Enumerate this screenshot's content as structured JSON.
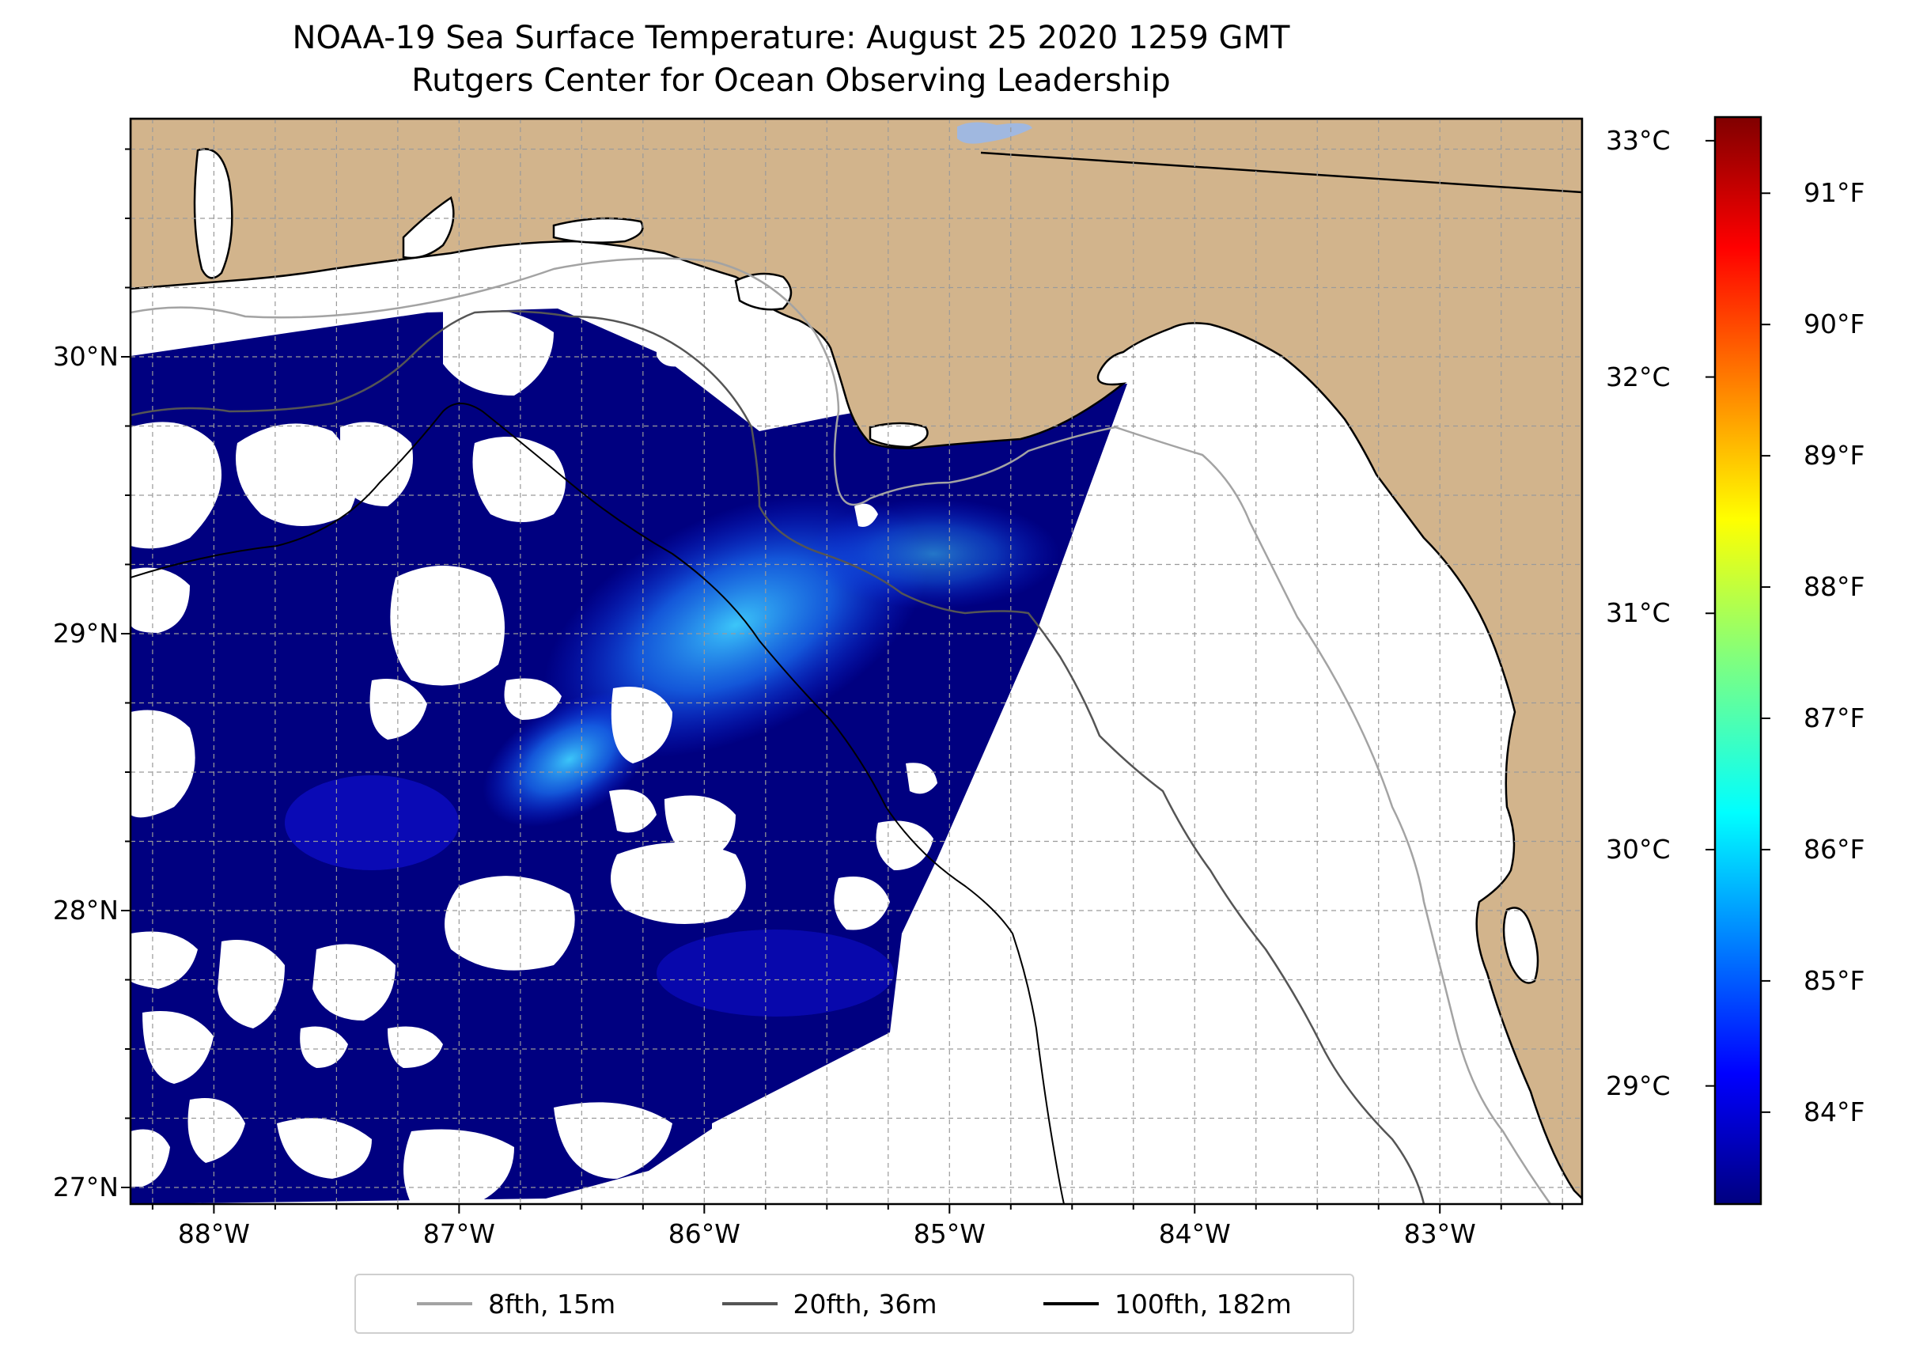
{
  "title": {
    "line1": "NOAA-19 Sea Surface Temperature: August 25 2020 1259 GMT",
    "line2": "Rutgers Center for Ocean Observing Leadership"
  },
  "map": {
    "extent": {
      "lon_min": -88.34,
      "lon_max": -82.42,
      "lat_min": 26.94,
      "lat_max": 30.86
    },
    "lat_ticks": [
      {
        "value": 30,
        "label": "30°N"
      },
      {
        "value": 29,
        "label": "29°N"
      },
      {
        "value": 28,
        "label": "28°N"
      },
      {
        "value": 27,
        "label": "27°N"
      }
    ],
    "lon_ticks": [
      {
        "value": -88,
        "label": "88°W"
      },
      {
        "value": -87,
        "label": "87°W"
      },
      {
        "value": -86,
        "label": "86°W"
      },
      {
        "value": -85,
        "label": "85°W"
      },
      {
        "value": -84,
        "label": "84°W"
      },
      {
        "value": -83,
        "label": "83°W"
      }
    ],
    "colors": {
      "land": "#d2b48c",
      "no_data": "#ffffff",
      "cold_water": "#000080",
      "grid": "#9a9a9a",
      "isobath_8": "#a3a3a3",
      "isobath_20": "#555555",
      "isobath_100": "#000000"
    }
  },
  "colorbar": {
    "colormap": "jet",
    "celsius_ticks": [
      {
        "value": 33,
        "label": "33°C"
      },
      {
        "value": 32,
        "label": "32°C"
      },
      {
        "value": 31,
        "label": "31°C"
      },
      {
        "value": 30,
        "label": "30°C"
      },
      {
        "value": 29,
        "label": "29°C"
      }
    ],
    "fahrenheit_ticks": [
      {
        "value": 91,
        "label": "91°F"
      },
      {
        "value": 90,
        "label": "90°F"
      },
      {
        "value": 89,
        "label": "89°F"
      },
      {
        "value": 88,
        "label": "88°F"
      },
      {
        "value": 87,
        "label": "87°F"
      },
      {
        "value": 86,
        "label": "86°F"
      },
      {
        "value": 85,
        "label": "85°F"
      },
      {
        "value": 84,
        "label": "84°F"
      }
    ],
    "range_c": [
      28.5,
      33.1
    ]
  },
  "legend": {
    "items": [
      {
        "label": "8fth, 15m",
        "color": "#a3a3a3"
      },
      {
        "label": "20fth, 36m",
        "color": "#555555"
      },
      {
        "label": "100fth, 182m",
        "color": "#000000"
      }
    ]
  }
}
